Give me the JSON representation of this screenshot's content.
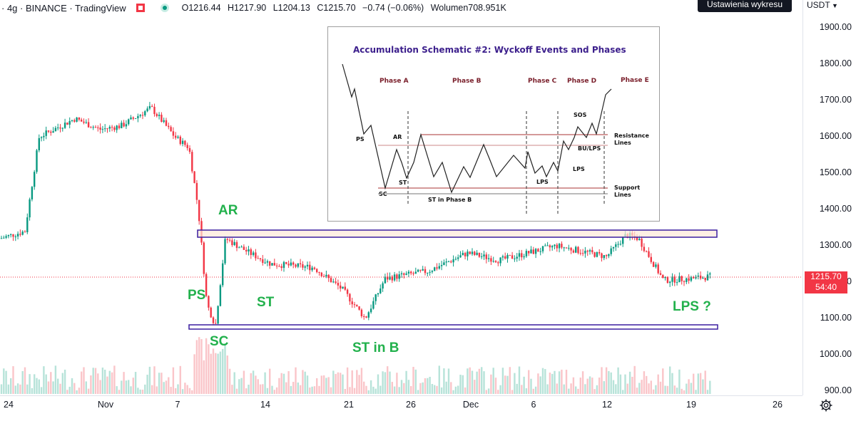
{
  "header": {
    "symbol": "· 4g · BINANCE · TradingView",
    "ohlc": [
      {
        "k": "O",
        "v": "1216.44"
      },
      {
        "k": "H",
        "v": "1217.90"
      },
      {
        "k": "L",
        "v": "1204.13"
      },
      {
        "k": "C",
        "v": "1215.70"
      },
      {
        "k": "",
        "v": "−0.74 (−0.06%)"
      },
      {
        "k": "Wolumen",
        "v": "708.951K"
      }
    ],
    "settings_label": "Ustawienia wykresu"
  },
  "price_axis": {
    "currency": "USDT",
    "ticks": [
      "1900.00",
      "1800.00",
      "1700.00",
      "1600.00",
      "1500.00",
      "1400.00",
      "1300.00",
      "1200.00",
      "1100.00",
      "1000.00",
      "900.00"
    ],
    "last_price": "1215.70",
    "countdown": "54:40"
  },
  "time_axis": {
    "ticks": [
      "24",
      "Nov",
      "7",
      "14",
      "21",
      "26",
      "Dec",
      "6",
      "12",
      "19",
      "26"
    ]
  },
  "annotations": {
    "ar": "AR",
    "ps": "PS",
    "sc": "SC",
    "st": "ST",
    "st_in_b": "ST in B",
    "lps": "LPS ?"
  },
  "inset": {
    "title": "Accumulation Schematic #2: Wyckoff Events and Phases",
    "phases": [
      "Phase A",
      "Phase B",
      "Phase C",
      "Phase D",
      "Phase E"
    ],
    "events": {
      "ps": "PS",
      "ar": "AR",
      "st": "ST",
      "sc": "SC",
      "st_in_phase_b": "ST in Phase B",
      "lps1": "LPS",
      "lps2": "LPS",
      "sos": "SOS",
      "bu_lps": "BU/LPS",
      "resistance": "Resistance",
      "resistance2": "Lines",
      "support": "Support",
      "support2": "Lines"
    }
  },
  "colors": {
    "up": "#089981",
    "down": "#f23645",
    "box": "#3c1fa0",
    "box_fill": "#fde8d8",
    "label": "#22b14c"
  },
  "chart_data": {
    "type": "candlestick",
    "ylim": [
      900,
      1950
    ],
    "series": [
      {
        "name": "",
        "close_approx": [
          1320,
          1340,
          1600,
          1650,
          1620,
          1630,
          1680,
          1600,
          1570,
          1400,
          1140,
          1080,
          1320,
          1280,
          1250,
          1240,
          1180,
          1100,
          1210,
          1230,
          1280,
          1260,
          1300,
          1270,
          1330,
          1320,
          1205,
          1210,
          1215.7
        ]
      }
    ]
  }
}
